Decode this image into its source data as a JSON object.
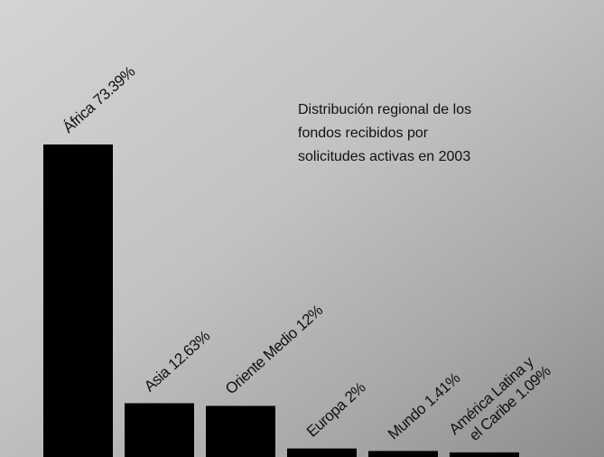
{
  "chart_data": {
    "type": "bar",
    "title": [
      "Distribución regional de los",
      "fondos recibidos por",
      "solicitudes activas en 2003"
    ],
    "categories": [
      "África",
      "Asia",
      "Oriente Medio",
      "Europa",
      "Mundo",
      "América Latina y el Caribe"
    ],
    "values": [
      73.39,
      12.63,
      12,
      2,
      1.41,
      1.09
    ],
    "value_labels": [
      "73.39%",
      "12.63%",
      "12%",
      "2%",
      "1.41%",
      "1.09%"
    ],
    "color": "#000000"
  }
}
